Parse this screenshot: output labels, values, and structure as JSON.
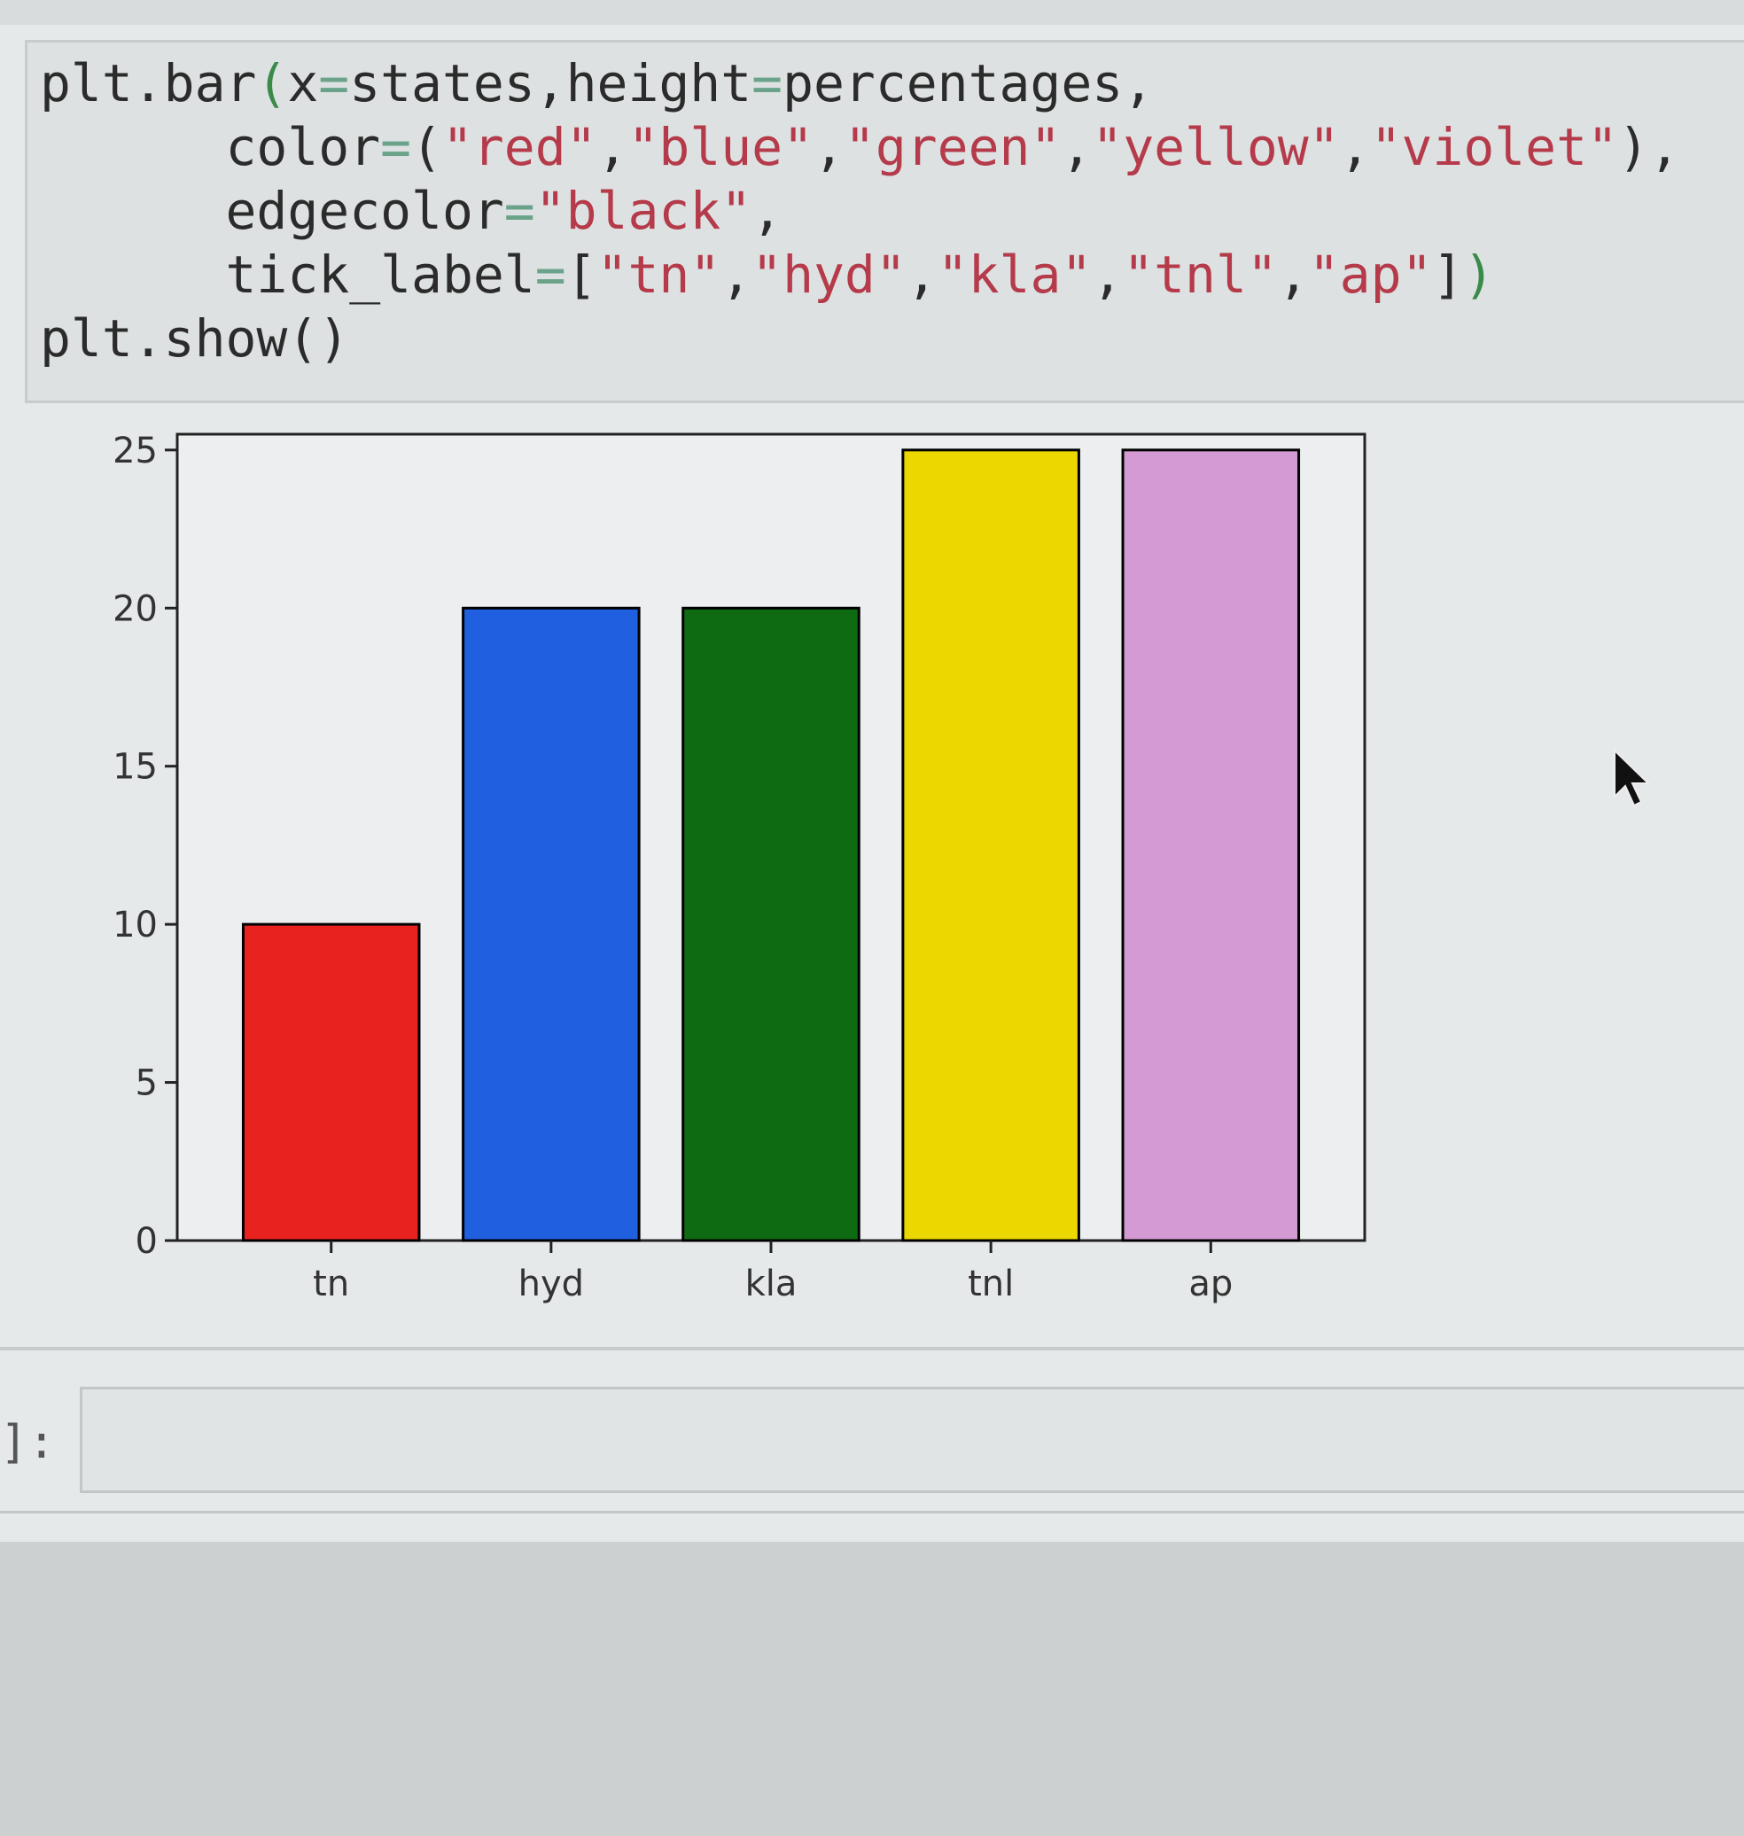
{
  "code_cell": {
    "lines": [
      [
        {
          "t": "plt.bar",
          "c": ""
        },
        {
          "t": "(",
          "c": "par"
        },
        {
          "t": "x",
          "c": ""
        },
        {
          "t": "=",
          "c": "op"
        },
        {
          "t": "states,height",
          "c": ""
        },
        {
          "t": "=",
          "c": "op"
        },
        {
          "t": "percentages,",
          "c": ""
        }
      ],
      [
        {
          "t": "      color",
          "c": ""
        },
        {
          "t": "=",
          "c": "op"
        },
        {
          "t": "(",
          "c": ""
        },
        {
          "t": "\"red\"",
          "c": "str"
        },
        {
          "t": ",",
          "c": ""
        },
        {
          "t": "\"blue\"",
          "c": "str"
        },
        {
          "t": ",",
          "c": ""
        },
        {
          "t": "\"green\"",
          "c": "str"
        },
        {
          "t": ",",
          "c": ""
        },
        {
          "t": "\"yellow\"",
          "c": "str"
        },
        {
          "t": ",",
          "c": ""
        },
        {
          "t": "\"violet\"",
          "c": "str"
        },
        {
          "t": "),",
          "c": ""
        }
      ],
      [
        {
          "t": "      edgecolor",
          "c": ""
        },
        {
          "t": "=",
          "c": "op"
        },
        {
          "t": "\"black\"",
          "c": "str"
        },
        {
          "t": ",",
          "c": ""
        }
      ],
      [
        {
          "t": "      tick_label",
          "c": ""
        },
        {
          "t": "=",
          "c": "op"
        },
        {
          "t": "[",
          "c": ""
        },
        {
          "t": "\"tn\"",
          "c": "str"
        },
        {
          "t": ",",
          "c": ""
        },
        {
          "t": "\"hyd\"",
          "c": "str"
        },
        {
          "t": ",",
          "c": ""
        },
        {
          "t": "\"kla\"",
          "c": "str"
        },
        {
          "t": ",",
          "c": ""
        },
        {
          "t": "\"tnl\"",
          "c": "str"
        },
        {
          "t": ",",
          "c": ""
        },
        {
          "t": "\"ap\"",
          "c": "str"
        },
        {
          "t": "]",
          "c": ""
        },
        {
          "t": ")",
          "c": "par"
        }
      ],
      [
        {
          "t": "plt.show()",
          "c": ""
        }
      ]
    ]
  },
  "chart_data": {
    "type": "bar",
    "categories": [
      "tn",
      "hyd",
      "kla",
      "tnl",
      "ap"
    ],
    "values": [
      10,
      20,
      20,
      25,
      25
    ],
    "colors": [
      "#e8231f",
      "#1f5fe0",
      "#0e6b12",
      "#ecd800",
      "#d49ad4"
    ],
    "edgecolor": "#000000",
    "ylim": [
      0,
      25.5
    ],
    "yticks": [
      0,
      5,
      10,
      15,
      20,
      25
    ],
    "title": "",
    "xlabel": "",
    "ylabel": "",
    "grid": false
  },
  "next_cell": {
    "prompt": "]:",
    "value": ""
  }
}
